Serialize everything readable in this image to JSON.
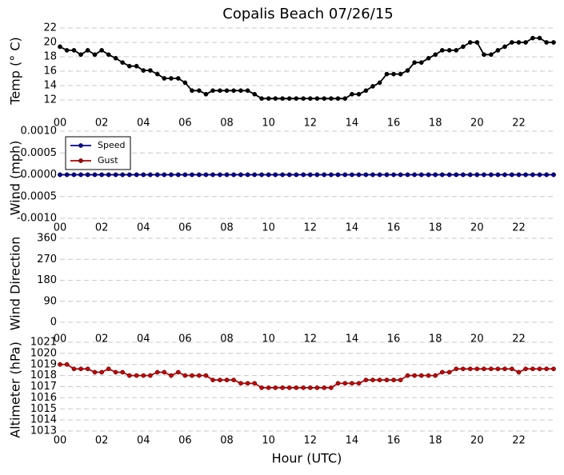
{
  "chart_data": [
    {
      "type": "line",
      "title": "Copalis Beach 07/26/15",
      "ylabel": "Temp (° C)",
      "x": [
        0,
        0.33,
        0.67,
        1,
        1.33,
        1.67,
        2,
        2.33,
        2.67,
        3,
        3.33,
        3.67,
        4,
        4.33,
        4.67,
        5,
        5.33,
        5.67,
        6,
        6.33,
        6.67,
        7,
        7.33,
        7.67,
        8,
        8.33,
        8.67,
        9,
        9.33,
        9.67,
        10,
        10.33,
        10.67,
        11,
        11.33,
        11.67,
        12,
        12.33,
        12.67,
        13,
        13.33,
        13.67,
        14,
        14.33,
        14.67,
        15,
        15.33,
        15.67,
        16,
        16.33,
        16.67,
        17,
        17.33,
        17.67,
        18,
        18.33,
        18.67,
        19,
        19.33,
        19.67,
        20,
        20.33,
        20.67,
        21,
        21.33,
        21.67,
        22,
        22.33,
        22.67,
        23,
        23.33,
        23.67
      ],
      "series": [
        {
          "color": "#000000",
          "values": [
            19.4,
            18.9,
            18.9,
            18.3,
            18.9,
            18.3,
            18.9,
            18.3,
            17.8,
            17.2,
            16.7,
            16.7,
            16.1,
            16.1,
            15.6,
            15.0,
            15.0,
            15.0,
            14.4,
            13.3,
            13.3,
            12.8,
            13.3,
            13.3,
            13.3,
            13.3,
            13.3,
            13.3,
            12.8,
            12.2,
            12.2,
            12.2,
            12.2,
            12.2,
            12.2,
            12.2,
            12.2,
            12.2,
            12.2,
            12.2,
            12.2,
            12.2,
            12.8,
            12.8,
            13.3,
            13.9,
            14.4,
            15.6,
            15.6,
            15.6,
            16.1,
            17.2,
            17.2,
            17.8,
            18.3,
            18.9,
            18.9,
            18.9,
            19.4,
            20.0,
            20.0,
            18.3,
            18.3,
            18.9,
            19.4,
            20.0,
            20.0,
            20.0,
            20.6,
            20.6,
            20.0,
            20.0
          ]
        }
      ],
      "xlim": [
        0,
        23.67
      ],
      "ylim": [
        11,
        22
      ],
      "yticks": [
        12,
        14,
        16,
        18,
        20,
        22
      ],
      "xticks": [
        {
          "value": 0,
          "label": "00"
        },
        {
          "value": 2,
          "label": "02"
        },
        {
          "value": 4,
          "label": "04"
        },
        {
          "value": 6,
          "label": "06"
        },
        {
          "value": 8,
          "label": "08"
        },
        {
          "value": 10,
          "label": "10"
        },
        {
          "value": 12,
          "label": "12"
        },
        {
          "value": 14,
          "label": "14"
        },
        {
          "value": 16,
          "label": "16"
        },
        {
          "value": 18,
          "label": "18"
        },
        {
          "value": 20,
          "label": "20"
        },
        {
          "value": 22,
          "label": "22"
        }
      ],
      "grid": true
    },
    {
      "type": "line",
      "ylabel": "Wind (mph)",
      "legend": "upper left",
      "x": [
        0,
        0.33,
        0.67,
        1,
        1.33,
        1.67,
        2,
        2.33,
        2.67,
        3,
        3.33,
        3.67,
        4,
        4.33,
        4.67,
        5,
        5.33,
        5.67,
        6,
        6.33,
        6.67,
        7,
        7.33,
        7.67,
        8,
        8.33,
        8.67,
        9,
        9.33,
        9.67,
        10,
        10.33,
        10.67,
        11,
        11.33,
        11.67,
        12,
        12.33,
        12.67,
        13,
        13.33,
        13.67,
        14,
        14.33,
        14.67,
        15,
        15.33,
        15.67,
        16,
        16.33,
        16.67,
        17,
        17.33,
        17.67,
        18,
        18.33,
        18.67,
        19,
        19.33,
        19.67,
        20,
        20.33,
        20.67,
        21,
        21.33,
        21.67,
        22,
        22.33,
        22.67,
        23,
        23.33,
        23.67
      ],
      "series": [
        {
          "name": "Speed",
          "color": "#0000a0",
          "values": [
            0,
            0,
            0,
            0,
            0,
            0,
            0,
            0,
            0,
            0,
            0,
            0,
            0,
            0,
            0,
            0,
            0,
            0,
            0,
            0,
            0,
            0,
            0,
            0,
            0,
            0,
            0,
            0,
            0,
            0,
            0,
            0,
            0,
            0,
            0,
            0,
            0,
            0,
            0,
            0,
            0,
            0,
            0,
            0,
            0,
            0,
            0,
            0,
            0,
            0,
            0,
            0,
            0,
            0,
            0,
            0,
            0,
            0,
            0,
            0,
            0,
            0,
            0,
            0,
            0,
            0,
            0,
            0,
            0,
            0,
            0,
            0
          ]
        },
        {
          "name": "Gust",
          "color": "#b00000",
          "values": [
            0,
            0,
            0,
            0,
            0,
            0,
            0,
            0,
            0,
            0,
            0,
            0,
            0,
            0,
            0,
            0,
            0,
            0,
            0,
            0,
            0,
            0,
            0,
            0,
            0,
            0,
            0,
            0,
            0,
            0,
            0,
            0,
            0,
            0,
            0,
            0,
            0,
            0,
            0,
            0,
            0,
            0,
            0,
            0,
            0,
            0,
            0,
            0,
            0,
            0,
            0,
            0,
            0,
            0,
            0,
            0,
            0,
            0,
            0,
            0,
            0,
            0,
            0,
            0,
            0,
            0,
            0,
            0,
            0,
            0,
            0,
            0
          ]
        }
      ],
      "xlim": [
        0,
        23.67
      ],
      "ylim": [
        -0.001,
        0.001
      ],
      "yticks": [
        {
          "value": -0.001,
          "label": "-0.0010"
        },
        {
          "value": -0.0005,
          "label": "-0.0005"
        },
        {
          "value": 0,
          "label": "0.0000"
        },
        {
          "value": 0.0005,
          "label": "0.0005"
        },
        {
          "value": 0.001,
          "label": "0.0010"
        }
      ],
      "xticks": [
        {
          "value": 0,
          "label": "00"
        },
        {
          "value": 2,
          "label": "02"
        },
        {
          "value": 4,
          "label": "04"
        },
        {
          "value": 6,
          "label": "06"
        },
        {
          "value": 8,
          "label": "08"
        },
        {
          "value": 10,
          "label": "10"
        },
        {
          "value": 12,
          "label": "12"
        },
        {
          "value": 14,
          "label": "14"
        },
        {
          "value": 16,
          "label": "16"
        },
        {
          "value": 18,
          "label": "18"
        },
        {
          "value": 20,
          "label": "20"
        },
        {
          "value": 22,
          "label": "22"
        }
      ],
      "grid": true
    },
    {
      "type": "scatter",
      "ylabel": "Wind Direction",
      "xlim": [
        0,
        23.67
      ],
      "ylim": [
        0,
        360
      ],
      "yticks": [
        0,
        90,
        180,
        270,
        360
      ],
      "xticks": [
        {
          "value": 0,
          "label": "00"
        },
        {
          "value": 2,
          "label": "02"
        },
        {
          "value": 4,
          "label": "04"
        },
        {
          "value": 6,
          "label": "06"
        },
        {
          "value": 8,
          "label": "08"
        },
        {
          "value": 10,
          "label": "10"
        },
        {
          "value": 12,
          "label": "12"
        },
        {
          "value": 14,
          "label": "14"
        },
        {
          "value": 16,
          "label": "16"
        },
        {
          "value": 18,
          "label": "18"
        },
        {
          "value": 20,
          "label": "20"
        },
        {
          "value": 22,
          "label": "22"
        }
      ],
      "grid": true
    },
    {
      "type": "line",
      "ylabel": "Altimeter (hPa)",
      "xlabel": "Hour (UTC)",
      "x": [
        0,
        0.33,
        0.67,
        1,
        1.33,
        1.67,
        2,
        2.33,
        2.67,
        3,
        3.33,
        3.67,
        4,
        4.33,
        4.67,
        5,
        5.33,
        5.67,
        6,
        6.33,
        6.67,
        7,
        7.33,
        7.67,
        8,
        8.33,
        8.67,
        9,
        9.33,
        9.67,
        10,
        10.33,
        10.67,
        11,
        11.33,
        11.67,
        12,
        12.33,
        12.67,
        13,
        13.33,
        13.67,
        14,
        14.33,
        14.67,
        15,
        15.33,
        15.67,
        16,
        16.33,
        16.67,
        17,
        17.33,
        17.67,
        18,
        18.33,
        18.67,
        19,
        19.33,
        19.67,
        20,
        20.33,
        20.67,
        21,
        21.33,
        21.67,
        22,
        22.33,
        22.67,
        23,
        23.33,
        23.67
      ],
      "series": [
        {
          "color": "#cc0000",
          "values": [
            1019.0,
            1019.0,
            1018.6,
            1018.6,
            1018.6,
            1018.3,
            1018.3,
            1018.6,
            1018.3,
            1018.3,
            1018.0,
            1018.0,
            1018.0,
            1018.0,
            1018.3,
            1018.3,
            1018.0,
            1018.3,
            1018.0,
            1018.0,
            1018.0,
            1018.0,
            1017.6,
            1017.6,
            1017.6,
            1017.6,
            1017.3,
            1017.3,
            1017.3,
            1016.9,
            1016.9,
            1016.9,
            1016.9,
            1016.9,
            1016.9,
            1016.9,
            1016.9,
            1016.9,
            1016.9,
            1016.9,
            1017.3,
            1017.3,
            1017.3,
            1017.3,
            1017.6,
            1017.6,
            1017.6,
            1017.6,
            1017.6,
            1017.6,
            1018.0,
            1018.0,
            1018.0,
            1018.0,
            1018.0,
            1018.3,
            1018.3,
            1018.6,
            1018.6,
            1018.6,
            1018.6,
            1018.6,
            1018.6,
            1018.6,
            1018.6,
            1018.6,
            1018.3,
            1018.6,
            1018.6,
            1018.6,
            1018.6,
            1018.6
          ]
        }
      ],
      "xlim": [
        0,
        23.67
      ],
      "ylim": [
        1013,
        1021
      ],
      "yticks": [
        1013,
        1014,
        1015,
        1016,
        1017,
        1018,
        1019,
        1020,
        1021
      ],
      "xticks": [
        {
          "value": 0,
          "label": "00"
        },
        {
          "value": 2,
          "label": "02"
        },
        {
          "value": 4,
          "label": "04"
        },
        {
          "value": 6,
          "label": "06"
        },
        {
          "value": 8,
          "label": "08"
        },
        {
          "value": 10,
          "label": "10"
        },
        {
          "value": 12,
          "label": "12"
        },
        {
          "value": 14,
          "label": "14"
        },
        {
          "value": 16,
          "label": "16"
        },
        {
          "value": 18,
          "label": "18"
        },
        {
          "value": 20,
          "label": "20"
        },
        {
          "value": 22,
          "label": "22"
        }
      ],
      "grid": true
    }
  ]
}
